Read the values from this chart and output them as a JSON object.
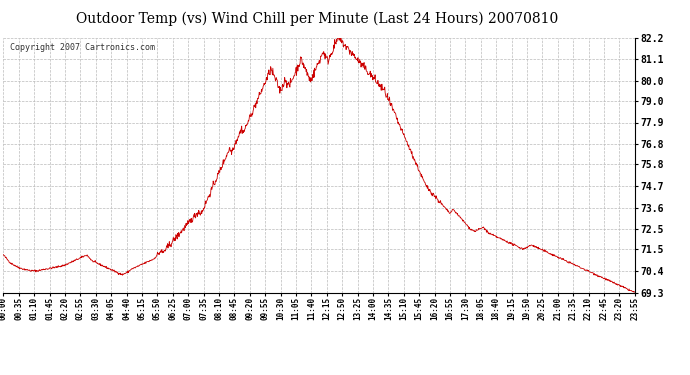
{
  "title": "Outdoor Temp (vs) Wind Chill per Minute (Last 24 Hours) 20070810",
  "copyright_text": "Copyright 2007 Cartronics.com",
  "line_color": "#cc0000",
  "background_color": "#ffffff",
  "grid_color": "#bbbbbb",
  "y_min": 69.3,
  "y_max": 82.2,
  "y_ticks": [
    69.3,
    70.4,
    71.5,
    72.5,
    73.6,
    74.7,
    75.8,
    76.8,
    77.9,
    79.0,
    80.0,
    81.1,
    82.2
  ],
  "x_tick_labels": [
    "00:00",
    "00:35",
    "01:10",
    "01:45",
    "02:20",
    "02:55",
    "03:30",
    "04:05",
    "04:40",
    "05:15",
    "05:50",
    "06:25",
    "07:00",
    "07:35",
    "08:10",
    "08:45",
    "09:20",
    "09:55",
    "10:30",
    "11:05",
    "11:40",
    "12:15",
    "12:50",
    "13:25",
    "14:00",
    "14:35",
    "15:10",
    "15:45",
    "16:20",
    "16:55",
    "17:30",
    "18:05",
    "18:40",
    "19:15",
    "19:50",
    "20:25",
    "21:00",
    "21:35",
    "22:10",
    "22:45",
    "23:20",
    "23:55"
  ],
  "data_y": [
    71.2,
    71.15,
    71.1,
    71.05,
    71.0,
    70.95,
    70.9,
    70.85,
    70.8,
    70.78,
    70.75,
    70.72,
    70.7,
    70.68,
    70.65,
    70.62,
    70.6,
    70.58,
    70.56,
    70.55,
    70.53,
    70.51,
    70.5,
    70.49,
    70.48,
    70.47,
    70.46,
    70.45,
    70.44,
    70.43,
    70.42,
    70.41,
    70.4,
    70.4,
    70.4,
    70.4,
    70.4,
    70.4,
    70.4,
    70.4,
    70.4,
    70.41,
    70.42,
    70.43,
    70.44,
    70.45,
    70.46,
    70.47,
    70.48,
    70.49,
    70.5,
    70.5,
    70.5,
    70.51,
    70.52,
    70.53,
    70.54,
    70.55,
    70.55,
    70.56,
    70.57,
    70.58,
    70.59,
    70.6,
    70.61,
    70.62,
    70.63,
    70.64,
    70.65,
    70.66,
    70.67,
    70.68,
    70.7,
    70.72,
    70.74,
    70.76,
    70.78,
    70.8,
    70.82,
    70.84,
    70.86,
    70.88,
    70.9,
    70.92,
    70.94,
    70.96,
    70.98,
    71.0,
    71.02,
    71.04,
    71.06,
    71.08,
    71.1,
    71.12,
    71.14,
    71.16,
    71.18,
    71.2,
    71.15,
    71.1,
    71.05,
    71.0,
    70.95,
    70.9,
    70.88,
    70.86,
    70.84,
    70.82,
    70.8,
    70.78,
    70.76,
    70.74,
    70.72,
    70.7,
    70.68,
    70.66,
    70.64,
    70.62,
    70.6,
    70.58,
    70.56,
    70.54,
    70.52,
    70.5,
    70.48,
    70.46,
    70.44,
    70.42,
    70.4,
    70.38,
    70.36,
    70.34,
    70.32,
    70.3,
    70.28,
    70.26,
    70.24,
    70.22,
    70.2,
    70.22,
    70.24,
    70.26,
    70.28,
    70.3,
    70.32,
    70.35,
    70.38,
    70.42,
    70.46,
    70.5,
    70.5,
    70.52,
    70.54,
    70.56,
    70.58,
    70.6,
    70.62,
    70.64,
    70.66,
    70.68,
    70.7,
    70.72,
    70.74,
    70.76,
    70.78,
    70.8,
    70.82,
    70.84,
    70.86,
    70.88,
    70.9,
    70.92,
    70.94,
    70.96,
    70.98,
    71.0,
    71.05,
    71.1,
    71.15,
    71.2,
    71.25,
    71.3,
    71.35,
    71.4,
    71.35,
    71.3,
    71.35,
    71.4,
    71.45,
    71.5,
    71.55,
    71.6,
    71.65,
    71.7,
    71.75,
    71.8,
    71.85,
    71.9,
    71.95,
    72.0,
    72.05,
    72.1,
    72.15,
    72.2,
    72.25,
    72.3,
    72.35,
    72.4,
    72.45,
    72.5,
    72.55,
    72.6,
    72.65,
    72.7,
    72.75,
    72.8,
    72.85,
    72.9,
    72.95,
    73.0,
    73.05,
    73.1,
    73.15,
    73.2,
    73.25,
    73.3,
    73.35,
    73.4,
    73.35,
    73.3,
    73.35,
    73.4,
    73.5,
    73.6,
    73.7,
    73.8,
    73.9,
    74.0,
    74.1,
    74.2,
    74.3,
    74.4,
    74.5,
    74.6,
    74.7,
    74.8,
    74.9,
    75.0,
    75.1,
    75.2,
    75.3,
    75.4,
    75.5,
    75.6,
    75.7,
    75.8,
    75.9,
    76.0,
    76.1,
    76.2,
    76.3,
    76.4,
    76.5,
    76.6,
    76.5,
    76.4,
    76.5,
    76.6,
    76.7,
    76.8,
    76.9,
    77.0,
    77.1,
    77.2,
    77.3,
    77.4,
    77.5,
    77.6,
    77.5,
    77.4,
    77.5,
    77.6,
    77.7,
    77.8,
    77.9,
    78.0,
    78.1,
    78.2,
    78.3,
    78.4,
    78.5,
    78.6,
    78.7,
    78.8,
    78.9,
    79.0,
    79.1,
    79.2,
    79.3,
    79.4,
    79.5,
    79.6,
    79.7,
    79.8,
    79.9,
    80.0,
    80.1,
    80.2,
    80.3,
    80.4,
    80.5,
    80.6,
    80.5,
    80.4,
    80.3,
    80.2,
    80.1,
    80.0,
    79.9,
    79.8,
    79.7,
    79.6,
    79.5,
    79.6,
    79.7,
    79.8,
    79.9,
    80.0,
    80.1,
    80.0,
    79.9,
    79.8,
    79.7,
    79.8,
    79.9,
    80.0,
    80.1,
    80.2,
    80.3,
    80.4,
    80.5,
    80.6,
    80.7,
    80.8,
    80.9,
    81.0,
    81.1,
    81.0,
    80.9,
    80.8,
    80.7,
    80.6,
    80.5,
    80.4,
    80.3,
    80.2,
    80.1,
    80.0,
    80.1,
    80.2,
    80.3,
    80.4,
    80.5,
    80.6,
    80.7,
    80.8,
    80.9,
    81.0,
    81.1,
    81.2,
    81.3,
    81.4,
    81.5,
    81.4,
    81.3,
    81.2,
    81.1,
    81.0,
    81.1,
    81.2,
    81.3,
    81.4,
    81.5,
    81.6,
    81.7,
    81.8,
    81.9,
    82.0,
    82.1,
    82.2,
    82.15,
    82.1,
    82.05,
    82.0,
    81.95,
    81.9,
    81.85,
    81.8,
    81.75,
    81.7,
    81.65,
    81.6,
    81.55,
    81.5,
    81.45,
    81.4,
    81.35,
    81.3,
    81.25,
    81.2,
    81.15,
    81.1,
    81.05,
    81.0,
    80.95,
    80.9,
    80.85,
    80.8,
    80.75,
    80.7,
    80.65,
    80.6,
    80.55,
    80.5,
    80.45,
    80.4,
    80.35,
    80.3,
    80.25,
    80.2,
    80.15,
    80.1,
    80.05,
    80.0,
    79.95,
    79.9,
    79.85,
    79.8,
    79.75,
    79.7,
    79.65,
    79.6,
    79.55,
    79.5,
    79.4,
    79.3,
    79.2,
    79.1,
    79.0,
    78.9,
    78.8,
    78.7,
    78.6,
    78.5,
    78.4,
    78.3,
    78.2,
    78.1,
    78.0,
    77.9,
    77.8,
    77.7,
    77.6,
    77.5,
    77.4,
    77.3,
    77.2,
    77.1,
    77.0,
    76.9,
    76.8,
    76.7,
    76.6,
    76.5,
    76.4,
    76.3,
    76.2,
    76.1,
    76.0,
    75.9,
    75.8,
    75.7,
    75.6,
    75.5,
    75.4,
    75.3,
    75.2,
    75.1,
    75.0,
    74.9,
    74.8,
    74.7,
    74.65,
    74.6,
    74.55,
    74.5,
    74.45,
    74.4,
    74.35,
    74.3,
    74.25,
    74.2,
    74.15,
    74.1,
    74.05,
    74.0,
    73.95,
    73.9,
    73.85,
    73.8,
    73.75,
    73.7,
    73.65,
    73.6,
    73.55,
    73.5,
    73.45,
    73.4,
    73.35,
    73.3,
    73.35,
    73.4,
    73.45,
    73.5,
    73.45,
    73.4,
    73.35,
    73.3,
    73.25,
    73.2,
    73.15,
    73.1,
    73.05,
    73.0,
    72.95,
    72.9,
    72.85,
    72.8,
    72.75,
    72.7,
    72.65,
    72.6,
    72.55,
    72.5,
    72.48,
    72.46,
    72.44,
    72.42,
    72.4,
    72.42,
    72.44,
    72.46,
    72.48,
    72.5,
    72.52,
    72.54,
    72.56,
    72.58,
    72.6,
    72.55,
    72.5,
    72.45,
    72.4,
    72.35,
    72.3,
    72.28,
    72.26,
    72.24,
    72.22,
    72.2,
    72.18,
    72.16,
    72.14,
    72.12,
    72.1,
    72.08,
    72.06,
    72.04,
    72.02,
    72.0,
    71.98,
    71.96,
    71.94,
    71.92,
    71.9,
    71.88,
    71.86,
    71.84,
    71.82,
    71.8,
    71.78,
    71.76,
    71.74,
    71.72,
    71.7,
    71.68,
    71.66,
    71.64,
    71.62,
    71.6,
    71.58,
    71.56,
    71.54,
    71.52,
    71.5,
    71.52,
    71.54,
    71.56,
    71.58,
    71.6,
    71.62,
    71.64,
    71.66,
    71.68,
    71.7,
    71.68,
    71.66,
    71.64,
    71.62,
    71.6,
    71.58,
    71.56,
    71.54,
    71.52,
    71.5,
    71.48,
    71.46,
    71.44,
    71.42,
    71.4,
    71.38,
    71.36,
    71.34,
    71.32,
    71.3,
    71.28,
    71.26,
    71.24,
    71.22,
    71.2,
    71.18,
    71.16,
    71.14,
    71.12,
    71.1,
    71.08,
    71.06,
    71.04,
    71.02,
    71.0,
    70.98,
    70.96,
    70.94,
    70.92,
    70.9,
    70.88,
    70.86,
    70.84,
    70.82,
    70.8,
    70.78,
    70.76,
    70.74,
    70.72,
    70.7,
    70.68,
    70.66,
    70.64,
    70.62,
    70.6,
    70.58,
    70.56,
    70.54,
    70.52,
    70.5,
    70.48,
    70.46,
    70.44,
    70.42,
    70.4,
    70.38,
    70.36,
    70.34,
    70.32,
    70.3,
    70.28,
    70.26,
    70.24,
    70.22,
    70.2,
    70.18,
    70.16,
    70.14,
    70.12,
    70.1,
    70.08,
    70.06,
    70.04,
    70.02,
    70.0,
    69.98,
    69.96,
    69.94,
    69.92,
    69.9,
    69.88,
    69.86,
    69.84,
    69.82,
    69.8,
    69.78,
    69.76,
    69.74,
    69.72,
    69.7,
    69.68,
    69.66,
    69.64,
    69.62,
    69.6,
    69.58,
    69.56,
    69.54,
    69.52,
    69.5,
    69.48,
    69.46,
    69.44,
    69.42,
    69.4,
    69.38,
    69.36,
    69.34,
    69.32,
    69.3
  ]
}
